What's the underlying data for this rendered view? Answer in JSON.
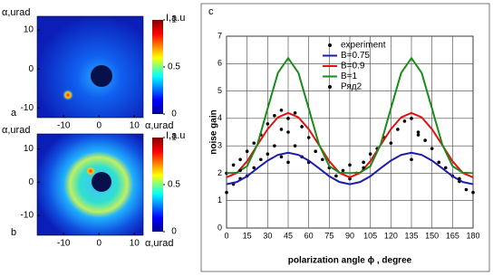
{
  "chart_data": [
    {
      "type": "image",
      "label": "a",
      "xlabel": "α,urad",
      "ylabel": "α,urad",
      "xlim": [
        -17.5,
        12.5
      ],
      "ylim": [
        -12.5,
        13.5
      ],
      "xticks": [
        -10,
        0,
        10
      ],
      "yticks": [
        -10,
        0,
        10
      ],
      "colorbar": {
        "label": "I,a.u",
        "lim": [
          0,
          1
        ],
        "ticks": [
          0,
          0.5,
          1
        ]
      }
    },
    {
      "type": "image",
      "label": "b",
      "xlabel": "α,urad",
      "ylabel": "α,urad",
      "xlim": [
        -17.5,
        12.5
      ],
      "ylim": [
        -16,
        14.5
      ],
      "xticks": [
        -10,
        0,
        10
      ],
      "yticks": [
        -10,
        0,
        10
      ],
      "colorbar": {
        "label": "I,a.u",
        "lim": [
          0,
          1
        ],
        "ticks": [
          0,
          0.5,
          1
        ]
      }
    },
    {
      "type": "line",
      "label": "c",
      "xlabel": "polarization angle ϕ , degree",
      "ylabel": "noise gain",
      "xlim": [
        0,
        180
      ],
      "ylim": [
        0,
        7
      ],
      "xticks": [
        0,
        15,
        30,
        45,
        60,
        75,
        90,
        105,
        120,
        135,
        150,
        165,
        180
      ],
      "yticks": [
        0,
        1,
        2,
        3,
        4,
        5,
        6,
        7
      ],
      "grid": true,
      "x": [
        0,
        7.5,
        15,
        22.5,
        30,
        37.5,
        45,
        52.5,
        60,
        67.5,
        75,
        82.5,
        90,
        97.5,
        105,
        112.5,
        120,
        127.5,
        135,
        142.5,
        150,
        157.5,
        165,
        172.5,
        180
      ],
      "series": [
        {
          "name": "experiment",
          "kind": "scatter",
          "color": "#000000",
          "x": [
            0,
            0,
            5,
            5,
            10,
            10,
            15,
            15,
            20,
            20,
            25,
            25,
            30,
            30,
            35,
            35,
            40,
            40,
            45,
            45,
            45,
            50,
            50,
            55,
            55,
            60,
            60,
            65,
            70,
            75,
            80,
            85,
            90,
            90,
            95,
            100,
            105,
            110,
            115,
            120,
            125,
            130,
            135,
            135,
            140,
            145,
            150,
            155,
            160,
            165,
            170,
            175,
            180
          ],
          "values": [
            1.3,
            2.0,
            1.6,
            2.3,
            1.8,
            2.5,
            1.9,
            2.8,
            2.2,
            3.1,
            2.5,
            3.4,
            2.7,
            3.8,
            3.0,
            4.1,
            2.6,
            4.3,
            2.4,
            3.5,
            4.0,
            3.0,
            4.2,
            2.6,
            3.7,
            2.4,
            3.3,
            2.8,
            2.5,
            2.2,
            1.9,
            2.1,
            1.8,
            2.3,
            2.0,
            2.4,
            2.7,
            2.9,
            3.3,
            3.1,
            3.6,
            3.9,
            2.5,
            4.0,
            3.5,
            3.2,
            2.9,
            2.4,
            2.2,
            1.9,
            1.7,
            1.4,
            1.3
          ]
        },
        {
          "name": "B=0.75",
          "color": "#1c1ca8",
          "values": [
            1.6,
            1.68,
            1.89,
            2.18,
            2.46,
            2.67,
            2.75,
            2.67,
            2.46,
            2.18,
            1.89,
            1.68,
            1.6,
            1.68,
            1.89,
            2.18,
            2.46,
            2.67,
            2.75,
            2.67,
            2.46,
            2.18,
            1.89,
            1.68,
            1.6
          ]
        },
        {
          "name": "B=0.9",
          "color": "#e01010",
          "values": [
            1.85,
            2.01,
            2.44,
            3.03,
            3.61,
            4.04,
            4.2,
            4.04,
            3.61,
            3.03,
            2.44,
            2.01,
            1.85,
            2.01,
            2.44,
            3.03,
            3.61,
            4.04,
            4.2,
            4.04,
            3.61,
            3.03,
            2.44,
            2.01,
            1.85
          ]
        },
        {
          "name": "B=1",
          "color": "#1a8a1a",
          "values": [
            2.0,
            2.02,
            2.26,
            3.05,
            4.36,
            5.66,
            6.2,
            5.66,
            4.36,
            3.05,
            2.26,
            2.02,
            2.0,
            2.02,
            2.26,
            3.05,
            4.36,
            5.66,
            6.2,
            5.66,
            4.36,
            3.05,
            2.26,
            2.02,
            2.0
          ]
        },
        {
          "name": "Ряд2",
          "kind": "scatter",
          "color": "#000000",
          "x": [
            10,
            40,
            100,
            140,
            170
          ],
          "values": [
            2.1,
            3.6,
            2.2,
            3.4,
            1.8
          ]
        }
      ]
    }
  ]
}
